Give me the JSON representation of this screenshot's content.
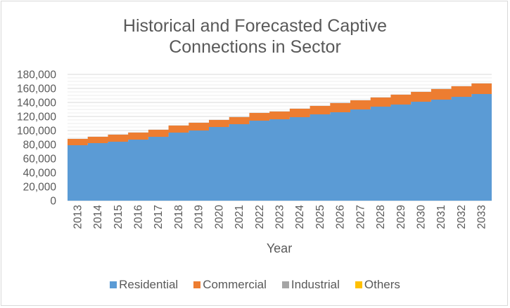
{
  "chart_data": {
    "type": "area",
    "stacked": true,
    "step": true,
    "title": "Historical and Forecasted Captive Connections in Sector",
    "title_lines": [
      "Historical and Forecasted Captive",
      "Connections in Sector"
    ],
    "xlabel": "Year",
    "ylabel": "",
    "ylim": [
      0,
      180000
    ],
    "yticks": [
      0,
      20000,
      40000,
      60000,
      80000,
      100000,
      120000,
      140000,
      160000,
      180000
    ],
    "ytick_labels": [
      "0",
      "20,000",
      "40,000",
      "60,000",
      "80,000",
      "100,000",
      "120,000",
      "140,000",
      "160,000",
      "180,000"
    ],
    "grid": true,
    "legend_position": "bottom",
    "categories": [
      "2013",
      "2014",
      "2015",
      "2016",
      "2017",
      "2018",
      "2019",
      "2020",
      "2021",
      "2022",
      "2023",
      "2024",
      "2025",
      "2026",
      "2027",
      "2028",
      "2029",
      "2030",
      "2031",
      "2032",
      "2033"
    ],
    "series": [
      {
        "name": "Residential",
        "color": "#5b9bd5",
        "values": [
          79000,
          82000,
          84000,
          87000,
          91000,
          97000,
          100000,
          105000,
          109000,
          114000,
          116000,
          119000,
          123000,
          126000,
          130000,
          134000,
          137000,
          141000,
          144000,
          148000,
          152000
        ]
      },
      {
        "name": "Commercial",
        "color": "#ed7d31",
        "values": [
          9000,
          9000,
          10000,
          10000,
          10000,
          10000,
          11000,
          10000,
          10000,
          11000,
          11000,
          12000,
          12000,
          13000,
          13000,
          13000,
          14000,
          14000,
          15000,
          15000,
          15000
        ]
      },
      {
        "name": "Industrial",
        "color": "#a5a5a5",
        "values": [
          200,
          200,
          200,
          200,
          200,
          200,
          200,
          200,
          200,
          200,
          200,
          200,
          200,
          200,
          200,
          200,
          200,
          200,
          200,
          200,
          200
        ]
      },
      {
        "name": "Others",
        "color": "#ffc000",
        "values": [
          100,
          100,
          100,
          100,
          100,
          100,
          100,
          100,
          100,
          100,
          100,
          100,
          100,
          100,
          100,
          100,
          100,
          100,
          100,
          100,
          100
        ]
      }
    ]
  }
}
